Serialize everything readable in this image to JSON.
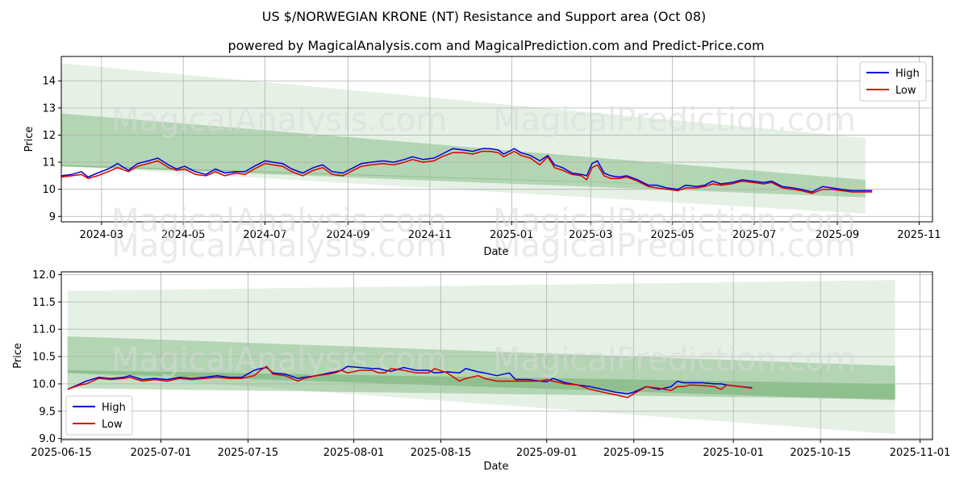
{
  "title": "US $/NORWEGIAN KRONE (NT) Resistance and Support area (Oct 08)",
  "subtitle": "powered by MagicalAnalysis.com and MagicalPrediction.com and Predict-Price.com",
  "watermarks": [
    "MagicalAnalysis.com",
    "MagicalPrediction.com"
  ],
  "colors": {
    "high": "#0000dd",
    "low": "#dd0000",
    "band": "#2e8b2e"
  },
  "chart_data": [
    {
      "type": "line",
      "xlabel": "Date",
      "ylabel": "Price",
      "grid": true,
      "legend_position": "top-right",
      "xlim": [
        0,
        650
      ],
      "ylim": [
        8.8,
        14.9
      ],
      "x_ticks": [
        {
          "x": 30,
          "label": "2024-03"
        },
        {
          "x": 91,
          "label": "2024-05"
        },
        {
          "x": 152,
          "label": "2024-07"
        },
        {
          "x": 214,
          "label": "2024-09"
        },
        {
          "x": 275,
          "label": "2024-11"
        },
        {
          "x": 336,
          "label": "2025-01"
        },
        {
          "x": 395,
          "label": "2025-03"
        },
        {
          "x": 456,
          "label": "2025-05"
        },
        {
          "x": 517,
          "label": "2025-07"
        },
        {
          "x": 579,
          "label": "2025-09"
        },
        {
          "x": 640,
          "label": "2025-11"
        }
      ],
      "y_ticks": [
        9,
        10,
        11,
        12,
        13,
        14
      ],
      "bands": [
        {
          "name": "outer",
          "x": [
            0,
            600
          ],
          "upper": [
            14.65,
            11.9
          ],
          "lower": [
            10.85,
            9.1
          ]
        },
        {
          "name": "middle",
          "x": [
            0,
            600
          ],
          "upper": [
            12.8,
            10.35
          ],
          "lower": [
            10.85,
            9.7
          ]
        },
        {
          "name": "inner",
          "x": [
            0,
            600
          ],
          "upper": [
            10.9,
            9.95
          ],
          "lower": [
            10.85,
            9.95
          ]
        }
      ],
      "series": [
        {
          "name": "High",
          "x": [
            0,
            8,
            15,
            20,
            27,
            35,
            42,
            50,
            57,
            65,
            72,
            80,
            86,
            92,
            100,
            108,
            115,
            122,
            130,
            137,
            144,
            152,
            158,
            165,
            172,
            180,
            188,
            195,
            202,
            210,
            218,
            224,
            231,
            240,
            248,
            256,
            262,
            270,
            278,
            284,
            292,
            300,
            307,
            314,
            320,
            326,
            330,
            338,
            343,
            350,
            357,
            363,
            368,
            374,
            381,
            388,
            392,
            396,
            400,
            405,
            410,
            416,
            422,
            430,
            438,
            444,
            452,
            460,
            466,
            474,
            480,
            486,
            492,
            500,
            508,
            516,
            524,
            530,
            538,
            546,
            552,
            560,
            568,
            575,
            582,
            590,
            597,
            605
          ],
          "values": [
            10.5,
            10.55,
            10.65,
            10.45,
            10.6,
            10.75,
            10.95,
            10.7,
            10.95,
            11.05,
            11.15,
            10.9,
            10.75,
            10.85,
            10.65,
            10.55,
            10.75,
            10.6,
            10.65,
            10.65,
            10.85,
            11.05,
            11.0,
            10.95,
            10.75,
            10.6,
            10.8,
            10.9,
            10.65,
            10.6,
            10.8,
            10.95,
            11.0,
            11.05,
            11.0,
            11.1,
            11.2,
            11.1,
            11.15,
            11.3,
            11.5,
            11.45,
            11.4,
            11.5,
            11.5,
            11.45,
            11.3,
            11.5,
            11.35,
            11.25,
            11.05,
            11.25,
            10.9,
            10.8,
            10.6,
            10.55,
            10.5,
            10.95,
            11.05,
            10.6,
            10.5,
            10.45,
            10.5,
            10.35,
            10.15,
            10.15,
            10.05,
            10.0,
            10.15,
            10.1,
            10.15,
            10.3,
            10.2,
            10.25,
            10.35,
            10.3,
            10.25,
            10.3,
            10.1,
            10.05,
            10.0,
            9.9,
            10.1,
            10.05,
            10.0,
            9.95,
            9.95,
            9.95
          ]
        },
        {
          "name": "Low",
          "x": [
            0,
            8,
            15,
            20,
            27,
            35,
            42,
            50,
            57,
            65,
            72,
            80,
            86,
            92,
            100,
            108,
            115,
            122,
            130,
            137,
            144,
            152,
            158,
            165,
            172,
            180,
            188,
            195,
            202,
            210,
            218,
            224,
            231,
            240,
            248,
            256,
            262,
            270,
            278,
            284,
            292,
            300,
            307,
            314,
            320,
            326,
            330,
            338,
            343,
            350,
            357,
            363,
            368,
            374,
            381,
            388,
            392,
            396,
            400,
            405,
            410,
            416,
            422,
            430,
            438,
            444,
            452,
            460,
            466,
            474,
            480,
            486,
            492,
            500,
            508,
            516,
            524,
            530,
            538,
            546,
            552,
            560,
            568,
            575,
            582,
            590,
            597,
            605
          ],
          "values": [
            10.45,
            10.5,
            10.55,
            10.4,
            10.5,
            10.65,
            10.8,
            10.65,
            10.85,
            10.95,
            11.05,
            10.8,
            10.7,
            10.75,
            10.55,
            10.5,
            10.65,
            10.5,
            10.6,
            10.55,
            10.75,
            10.95,
            10.9,
            10.85,
            10.65,
            10.5,
            10.7,
            10.8,
            10.55,
            10.5,
            10.7,
            10.85,
            10.9,
            10.95,
            10.9,
            11.0,
            11.1,
            11.0,
            11.05,
            11.2,
            11.35,
            11.35,
            11.3,
            11.4,
            11.4,
            11.35,
            11.2,
            11.4,
            11.25,
            11.15,
            10.9,
            11.2,
            10.8,
            10.7,
            10.55,
            10.5,
            10.35,
            10.8,
            10.9,
            10.5,
            10.4,
            10.4,
            10.45,
            10.3,
            10.1,
            10.05,
            10.0,
            9.95,
            10.05,
            10.05,
            10.1,
            10.2,
            10.15,
            10.2,
            10.3,
            10.25,
            10.2,
            10.25,
            10.05,
            10.0,
            9.95,
            9.85,
            10.0,
            10.0,
            9.95,
            9.9,
            9.9,
            9.9
          ]
        }
      ]
    },
    {
      "type": "line",
      "xlabel": "Date",
      "ylabel": "Price",
      "grid": true,
      "legend_position": "bottom-left",
      "xlim": [
        0,
        140
      ],
      "ylim": [
        8.98,
        12.05
      ],
      "x_ticks": [
        {
          "x": 0,
          "label": "2025-06-15"
        },
        {
          "x": 16,
          "label": "2025-07-01"
        },
        {
          "x": 30,
          "label": "2025-07-15"
        },
        {
          "x": 47,
          "label": "2025-08-01"
        },
        {
          "x": 61,
          "label": "2025-08-15"
        },
        {
          "x": 78,
          "label": "2025-09-01"
        },
        {
          "x": 92,
          "label": "2025-09-15"
        },
        {
          "x": 108,
          "label": "2025-10-01"
        },
        {
          "x": 122,
          "label": "2025-10-15"
        },
        {
          "x": 138,
          "label": "2025-11-01"
        }
      ],
      "y_ticks": [
        9.0,
        9.5,
        10.0,
        10.5,
        11.0,
        11.5,
        12.0
      ],
      "bands": [
        {
          "name": "outer",
          "x": [
            1,
            134
          ],
          "upper": [
            11.7,
            11.9
          ],
          "lower": [
            10.2,
            9.08
          ]
        },
        {
          "name": "middle",
          "x": [
            1,
            134
          ],
          "upper": [
            10.87,
            10.33
          ],
          "lower": [
            10.2,
            9.7
          ]
        },
        {
          "name": "inner",
          "x": [
            1,
            134
          ],
          "upper": [
            10.25,
            10.0
          ],
          "lower": [
            9.92,
            9.72
          ]
        }
      ],
      "series": [
        {
          "name": "High",
          "x": [
            1,
            3,
            4,
            6,
            8,
            10,
            11,
            13,
            15,
            17,
            19,
            21,
            23,
            25,
            27,
            29,
            31,
            32,
            33,
            34,
            36,
            38,
            39,
            41,
            43,
            44,
            45,
            46,
            48,
            50,
            51,
            52,
            53,
            55,
            57,
            59,
            60,
            62,
            64,
            65,
            67,
            68,
            70,
            72,
            73,
            75,
            77,
            78,
            79,
            81,
            83,
            85,
            87,
            89,
            91,
            92,
            94,
            96,
            98,
            99,
            100,
            101,
            103,
            105,
            106,
            107,
            109,
            111
          ],
          "values": [
            9.9,
            10.0,
            10.05,
            10.12,
            10.1,
            10.12,
            10.15,
            10.08,
            10.1,
            10.08,
            10.12,
            10.1,
            10.12,
            10.15,
            10.12,
            10.12,
            10.25,
            10.28,
            10.3,
            10.2,
            10.18,
            10.1,
            10.12,
            10.15,
            10.2,
            10.22,
            10.25,
            10.32,
            10.3,
            10.28,
            10.28,
            10.25,
            10.23,
            10.3,
            10.25,
            10.25,
            10.2,
            10.22,
            10.2,
            10.28,
            10.22,
            10.2,
            10.15,
            10.2,
            10.08,
            10.08,
            10.05,
            10.04,
            10.1,
            10.02,
            9.98,
            9.95,
            9.9,
            9.85,
            9.82,
            9.85,
            9.95,
            9.9,
            9.95,
            10.05,
            10.02,
            10.02,
            10.02,
            10.0,
            10.0,
            9.98,
            9.95,
            9.93
          ]
        },
        {
          "name": "Low",
          "x": [
            1,
            3,
            4,
            6,
            8,
            10,
            11,
            13,
            15,
            17,
            19,
            21,
            23,
            25,
            27,
            29,
            31,
            32,
            33,
            34,
            36,
            38,
            39,
            41,
            43,
            44,
            45,
            46,
            48,
            50,
            51,
            52,
            53,
            55,
            57,
            59,
            60,
            62,
            64,
            65,
            67,
            68,
            70,
            72,
            73,
            75,
            77,
            78,
            79,
            81,
            83,
            85,
            87,
            89,
            91,
            92,
            94,
            96,
            98,
            99,
            100,
            101,
            103,
            105,
            106,
            107,
            109,
            111
          ],
          "values": [
            9.9,
            9.98,
            10.0,
            10.1,
            10.08,
            10.1,
            10.12,
            10.05,
            10.08,
            10.05,
            10.1,
            10.08,
            10.1,
            10.12,
            10.1,
            10.1,
            10.15,
            10.25,
            10.32,
            10.18,
            10.15,
            10.05,
            10.1,
            10.15,
            10.18,
            10.2,
            10.25,
            10.2,
            10.25,
            10.25,
            10.2,
            10.2,
            10.28,
            10.25,
            10.2,
            10.2,
            10.28,
            10.2,
            10.05,
            10.1,
            10.15,
            10.1,
            10.05,
            10.05,
            10.05,
            10.05,
            10.05,
            10.08,
            10.05,
            10.0,
            9.98,
            9.9,
            9.85,
            9.8,
            9.75,
            9.82,
            9.95,
            9.92,
            9.88,
            9.95,
            9.95,
            9.98,
            9.97,
            9.95,
            9.9,
            9.98,
            9.95,
            9.92
          ]
        }
      ]
    }
  ]
}
